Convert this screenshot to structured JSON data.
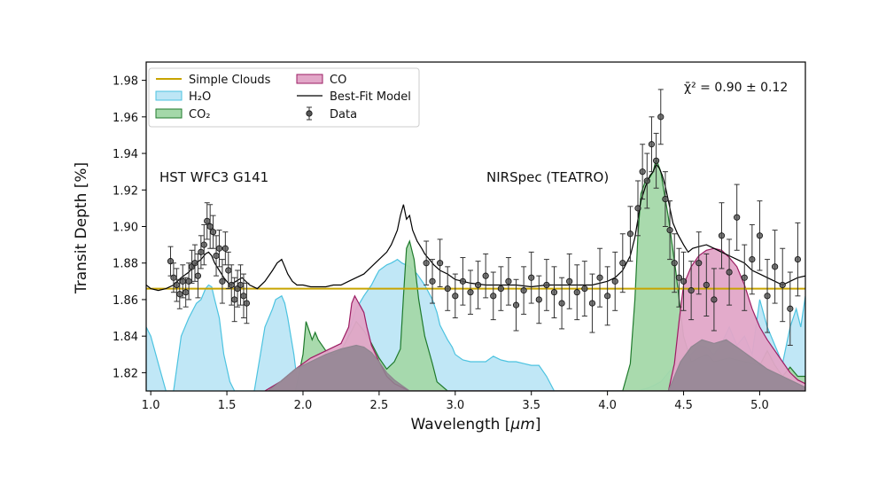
{
  "chart_data": {
    "type": "line",
    "xlabel_prefix": "Wavelength [",
    "xlabel_unit": "μm",
    "xlabel_suffix": "]",
    "ylabel": "Transit Depth [%]",
    "xlim": [
      0.97,
      5.3
    ],
    "ylim": [
      1.81,
      1.99
    ],
    "xticks": [
      1.0,
      1.5,
      2.0,
      2.5,
      3.0,
      3.5,
      4.0,
      4.5,
      5.0
    ],
    "xtick_labels": [
      "1.0",
      "1.5",
      "2.0",
      "2.5",
      "3.0",
      "3.5",
      "4.0",
      "4.5",
      "5.0"
    ],
    "yticks": [
      1.82,
      1.84,
      1.86,
      1.88,
      1.9,
      1.92,
      1.94,
      1.96,
      1.98
    ],
    "ytick_labels": [
      "1.82",
      "1.84",
      "1.86",
      "1.88",
      "1.90",
      "1.92",
      "1.94",
      "1.96",
      "1.98"
    ],
    "annotations": {
      "instrument_left": "HST WFC3 G141",
      "instrument_right": "NIRSpec (TEATRO)",
      "chi2_label": "χ̄² = 0.90 ± 0.12"
    },
    "legend": [
      {
        "label": "Simple Clouds",
        "kind": "line",
        "color": "#c8a400"
      },
      {
        "label": "H₂O",
        "kind": "patch",
        "face": "#bde6f5",
        "edge": "#4cc3e0"
      },
      {
        "label": "CO₂",
        "kind": "patch",
        "face": "#a4d8a9",
        "edge": "#1f7a2c"
      },
      {
        "label": "CO",
        "kind": "patch",
        "face": "#e2a7c8",
        "edge": "#9c1c63"
      },
      {
        "label": "Best-Fit Model",
        "kind": "line",
        "color": "#000000"
      },
      {
        "label": "Data",
        "kind": "errorbar",
        "color": "#333333"
      }
    ],
    "series": [
      {
        "name": "Simple Clouds",
        "type": "hline",
        "y": 1.866,
        "color": "#c8a400"
      },
      {
        "name": "H₂O",
        "type": "area",
        "face": "#bde6f5",
        "edge": "#4cc3e0",
        "x": [
          0.97,
          1.0,
          1.05,
          1.1,
          1.12,
          1.15,
          1.2,
          1.25,
          1.3,
          1.33,
          1.36,
          1.38,
          1.4,
          1.42,
          1.45,
          1.48,
          1.52,
          1.55,
          1.6,
          1.64,
          1.68,
          1.72,
          1.75,
          1.8,
          1.82,
          1.86,
          1.88,
          1.9,
          1.94,
          1.97,
          2.0,
          2.05,
          2.1,
          2.15,
          2.18,
          2.22,
          2.26,
          2.3,
          2.35,
          2.4,
          2.45,
          2.48,
          2.5,
          2.55,
          2.58,
          2.6,
          2.62,
          2.65,
          2.7,
          2.75,
          2.8,
          2.85,
          2.88,
          2.9,
          2.95,
          2.98,
          3.0,
          3.05,
          3.1,
          3.15,
          3.2,
          3.25,
          3.3,
          3.35,
          3.4,
          3.45,
          3.5,
          3.55,
          3.6,
          3.65,
          4.2,
          4.28,
          4.35,
          4.4,
          4.45,
          4.5,
          4.55,
          4.6,
          4.65,
          4.7,
          4.75,
          4.8,
          4.85,
          4.9,
          4.95,
          5.0,
          5.05,
          5.1,
          5.15,
          5.2,
          5.24,
          5.27,
          5.3
        ],
        "y": [
          1.845,
          1.84,
          1.825,
          1.81,
          1.81,
          1.81,
          1.84,
          1.85,
          1.858,
          1.86,
          1.866,
          1.868,
          1.867,
          1.86,
          1.85,
          1.83,
          1.815,
          1.81,
          1.81,
          1.81,
          1.81,
          1.83,
          1.845,
          1.855,
          1.86,
          1.862,
          1.858,
          1.85,
          1.83,
          1.81,
          1.81,
          1.81,
          1.81,
          1.81,
          1.81,
          1.815,
          1.828,
          1.842,
          1.855,
          1.862,
          1.868,
          1.873,
          1.876,
          1.879,
          1.88,
          1.881,
          1.882,
          1.88,
          1.878,
          1.874,
          1.868,
          1.86,
          1.853,
          1.846,
          1.838,
          1.834,
          1.83,
          1.827,
          1.826,
          1.826,
          1.826,
          1.829,
          1.827,
          1.826,
          1.826,
          1.825,
          1.824,
          1.824,
          1.818,
          1.81,
          1.81,
          1.812,
          1.815,
          1.82,
          1.825,
          1.83,
          1.83,
          1.835,
          1.834,
          1.83,
          1.836,
          1.845,
          1.835,
          1.84,
          1.83,
          1.86,
          1.845,
          1.835,
          1.825,
          1.845,
          1.855,
          1.845,
          1.862
        ]
      },
      {
        "name": "CO₂",
        "type": "area",
        "face": "#a4d8a9",
        "edge": "#1f7a2c",
        "x": [
          1.95,
          2.0,
          2.02,
          2.04,
          2.06,
          2.08,
          2.1,
          2.15,
          2.2,
          2.25,
          2.3,
          2.32,
          2.35,
          2.4,
          2.45,
          2.5,
          2.55,
          2.6,
          2.64,
          2.66,
          2.68,
          2.7,
          2.73,
          2.76,
          2.8,
          2.85,
          2.88,
          2.95,
          3.05,
          4.1,
          4.15,
          4.18,
          4.2,
          4.22,
          4.25,
          4.28,
          4.3,
          4.32,
          4.35,
          4.37,
          4.4,
          4.45,
          4.5,
          4.55,
          4.6,
          4.65,
          4.7,
          4.8,
          4.9,
          5.0,
          5.05,
          5.1,
          5.15,
          5.2,
          5.25,
          5.3
        ],
        "y": [
          1.81,
          1.83,
          1.848,
          1.843,
          1.838,
          1.842,
          1.838,
          1.832,
          1.83,
          1.832,
          1.84,
          1.843,
          1.848,
          1.843,
          1.836,
          1.828,
          1.822,
          1.826,
          1.833,
          1.862,
          1.888,
          1.892,
          1.882,
          1.86,
          1.84,
          1.825,
          1.815,
          1.81,
          1.81,
          1.81,
          1.825,
          1.86,
          1.895,
          1.918,
          1.925,
          1.927,
          1.93,
          1.937,
          1.93,
          1.92,
          1.905,
          1.875,
          1.84,
          1.826,
          1.828,
          1.83,
          1.826,
          1.828,
          1.826,
          1.824,
          1.832,
          1.824,
          1.818,
          1.823,
          1.818,
          1.818
        ]
      },
      {
        "name": "CO",
        "type": "area",
        "face": "#e2a7c8",
        "edge": "#9c1c63",
        "x": [
          1.75,
          1.85,
          1.95,
          2.05,
          2.15,
          2.25,
          2.3,
          2.32,
          2.34,
          2.36,
          2.38,
          2.4,
          2.42,
          2.45,
          2.5,
          2.55,
          2.6,
          2.65,
          2.7,
          4.4,
          4.44,
          4.47,
          4.5,
          4.55,
          4.6,
          4.65,
          4.7,
          4.75,
          4.8,
          4.85,
          4.9,
          4.95,
          5.0,
          5.05,
          5.1,
          5.15,
          5.2,
          5.25,
          5.3
        ],
        "y": [
          1.81,
          1.815,
          1.822,
          1.828,
          1.832,
          1.836,
          1.845,
          1.858,
          1.862,
          1.859,
          1.856,
          1.853,
          1.845,
          1.835,
          1.826,
          1.818,
          1.814,
          1.812,
          1.81,
          1.81,
          1.825,
          1.848,
          1.868,
          1.878,
          1.884,
          1.887,
          1.888,
          1.887,
          1.883,
          1.878,
          1.868,
          1.855,
          1.845,
          1.838,
          1.832,
          1.826,
          1.82,
          1.816,
          1.814
        ]
      },
      {
        "name": "Gray Continuum",
        "type": "area",
        "face": "#8f8590",
        "edge": "#8f8590",
        "x": [
          1.77,
          1.85,
          1.95,
          2.05,
          2.15,
          2.25,
          2.35,
          2.4,
          2.45,
          2.5,
          2.55,
          2.6,
          2.65,
          2.7,
          4.4,
          4.48,
          4.55,
          4.62,
          4.7,
          4.78,
          4.85,
          4.95,
          5.05,
          5.15,
          5.25,
          5.3
        ],
        "y": [
          1.81,
          1.815,
          1.822,
          1.826,
          1.83,
          1.833,
          1.835,
          1.834,
          1.831,
          1.826,
          1.82,
          1.816,
          1.813,
          1.81,
          1.81,
          1.826,
          1.834,
          1.838,
          1.836,
          1.838,
          1.834,
          1.828,
          1.822,
          1.818,
          1.814,
          1.812
        ]
      },
      {
        "name": "Best-Fit Model",
        "type": "line",
        "color": "#000000",
        "x": [
          0.97,
          1.0,
          1.05,
          1.1,
          1.15,
          1.2,
          1.25,
          1.3,
          1.33,
          1.36,
          1.38,
          1.4,
          1.42,
          1.45,
          1.48,
          1.52,
          1.56,
          1.6,
          1.65,
          1.7,
          1.75,
          1.8,
          1.83,
          1.86,
          1.88,
          1.9,
          1.93,
          1.96,
          2.0,
          2.05,
          2.1,
          2.15,
          2.2,
          2.25,
          2.3,
          2.35,
          2.4,
          2.45,
          2.5,
          2.55,
          2.58,
          2.6,
          2.62,
          2.64,
          2.66,
          2.68,
          2.7,
          2.72,
          2.75,
          2.78,
          2.8,
          2.83,
          2.86,
          2.9,
          2.95,
          3.0,
          3.05,
          3.1,
          3.2,
          3.3,
          3.4,
          3.5,
          3.6,
          3.7,
          3.8,
          3.9,
          4.0,
          4.05,
          4.1,
          4.15,
          4.18,
          4.2,
          4.22,
          4.25,
          4.28,
          4.3,
          4.32,
          4.34,
          4.36,
          4.38,
          4.4,
          4.43,
          4.46,
          4.5,
          4.53,
          4.56,
          4.6,
          4.65,
          4.7,
          4.75,
          4.8,
          4.85,
          4.9,
          4.95,
          5.0,
          5.05,
          5.1,
          5.15,
          5.2,
          5.25,
          5.3
        ],
        "y": [
          1.868,
          1.866,
          1.865,
          1.866,
          1.868,
          1.872,
          1.875,
          1.88,
          1.882,
          1.885,
          1.886,
          1.884,
          1.88,
          1.876,
          1.872,
          1.868,
          1.87,
          1.872,
          1.868,
          1.866,
          1.87,
          1.876,
          1.88,
          1.882,
          1.878,
          1.874,
          1.87,
          1.868,
          1.868,
          1.867,
          1.867,
          1.867,
          1.868,
          1.868,
          1.87,
          1.872,
          1.874,
          1.878,
          1.882,
          1.886,
          1.89,
          1.894,
          1.898,
          1.906,
          1.912,
          1.904,
          1.906,
          1.898,
          1.892,
          1.888,
          1.885,
          1.882,
          1.879,
          1.876,
          1.874,
          1.871,
          1.87,
          1.869,
          1.868,
          1.868,
          1.868,
          1.867,
          1.868,
          1.868,
          1.868,
          1.868,
          1.87,
          1.872,
          1.876,
          1.884,
          1.894,
          1.904,
          1.914,
          1.922,
          1.928,
          1.93,
          1.934,
          1.932,
          1.928,
          1.922,
          1.914,
          1.902,
          1.896,
          1.89,
          1.886,
          1.888,
          1.889,
          1.89,
          1.888,
          1.886,
          1.884,
          1.882,
          1.88,
          1.876,
          1.874,
          1.872,
          1.87,
          1.868,
          1.87,
          1.872,
          1.873
        ]
      },
      {
        "name": "Data",
        "type": "errorbar",
        "color": "#333333",
        "x": [
          1.13,
          1.15,
          1.17,
          1.19,
          1.21,
          1.23,
          1.25,
          1.27,
          1.29,
          1.31,
          1.33,
          1.35,
          1.37,
          1.39,
          1.41,
          1.43,
          1.45,
          1.47,
          1.49,
          1.51,
          1.53,
          1.55,
          1.57,
          1.59,
          1.61,
          1.63,
          2.81,
          2.85,
          2.9,
          2.95,
          3.0,
          3.05,
          3.1,
          3.15,
          3.2,
          3.25,
          3.3,
          3.35,
          3.4,
          3.45,
          3.5,
          3.55,
          3.6,
          3.65,
          3.7,
          3.75,
          3.8,
          3.85,
          3.9,
          3.95,
          4.0,
          4.05,
          4.1,
          4.15,
          4.2,
          4.23,
          4.26,
          4.29,
          4.32,
          4.35,
          4.38,
          4.41,
          4.44,
          4.47,
          4.5,
          4.55,
          4.6,
          4.65,
          4.7,
          4.75,
          4.8,
          4.85,
          4.9,
          4.95,
          5.0,
          5.05,
          5.1,
          5.15,
          5.2,
          5.25
        ],
        "y": [
          1.881,
          1.872,
          1.868,
          1.863,
          1.87,
          1.864,
          1.87,
          1.878,
          1.88,
          1.873,
          1.886,
          1.89,
          1.903,
          1.9,
          1.897,
          1.884,
          1.888,
          1.87,
          1.888,
          1.876,
          1.868,
          1.86,
          1.866,
          1.868,
          1.862,
          1.858,
          1.88,
          1.87,
          1.88,
          1.866,
          1.862,
          1.87,
          1.864,
          1.868,
          1.873,
          1.862,
          1.866,
          1.87,
          1.857,
          1.865,
          1.872,
          1.86,
          1.868,
          1.864,
          1.858,
          1.87,
          1.864,
          1.866,
          1.858,
          1.872,
          1.862,
          1.87,
          1.88,
          1.896,
          1.91,
          1.93,
          1.925,
          1.945,
          1.936,
          1.96,
          1.915,
          1.898,
          1.88,
          1.872,
          1.87,
          1.865,
          1.88,
          1.868,
          1.86,
          1.895,
          1.875,
          1.905,
          1.872,
          1.882,
          1.895,
          1.862,
          1.878,
          1.868,
          1.855,
          1.882
        ],
        "err": [
          0.008,
          0.008,
          0.009,
          0.008,
          0.009,
          0.008,
          0.01,
          0.009,
          0.01,
          0.012,
          0.009,
          0.011,
          0.01,
          0.012,
          0.009,
          0.011,
          0.01,
          0.012,
          0.009,
          0.01,
          0.011,
          0.012,
          0.01,
          0.011,
          0.012,
          0.011,
          0.012,
          0.012,
          0.013,
          0.012,
          0.012,
          0.013,
          0.012,
          0.013,
          0.012,
          0.013,
          0.012,
          0.013,
          0.014,
          0.013,
          0.014,
          0.013,
          0.014,
          0.014,
          0.014,
          0.015,
          0.015,
          0.015,
          0.016,
          0.016,
          0.016,
          0.016,
          0.016,
          0.015,
          0.015,
          0.015,
          0.015,
          0.015,
          0.015,
          0.015,
          0.015,
          0.016,
          0.016,
          0.016,
          0.016,
          0.016,
          0.017,
          0.017,
          0.017,
          0.018,
          0.018,
          0.018,
          0.018,
          0.019,
          0.019,
          0.02,
          0.02,
          0.02,
          0.02,
          0.02
        ]
      }
    ]
  }
}
